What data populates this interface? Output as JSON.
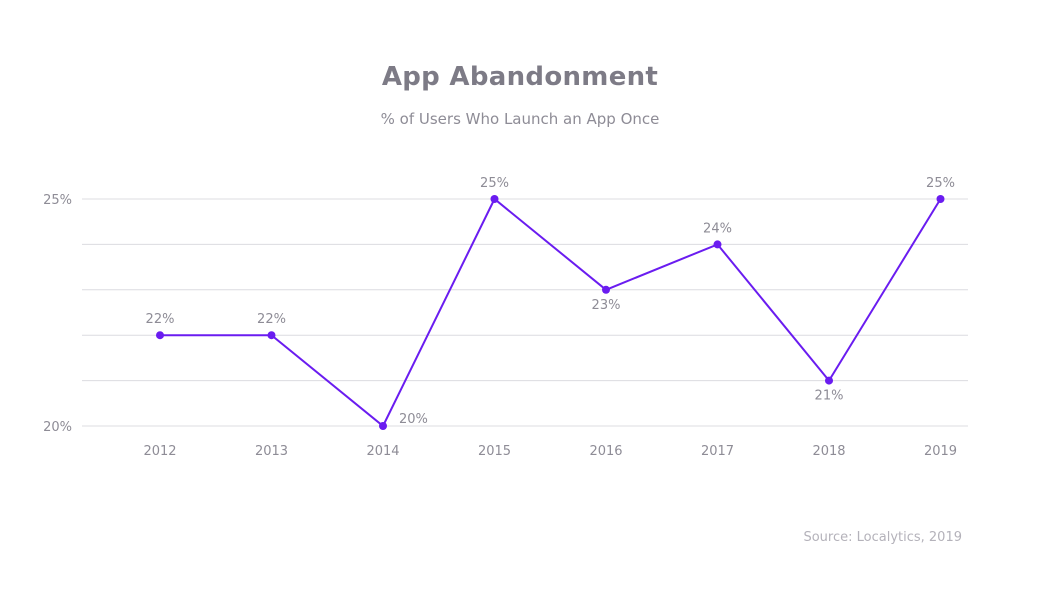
{
  "chart_data": {
    "type": "line",
    "title": "App Abandonment",
    "subtitle": "% of Users Who Launch an App Once",
    "source": "Source: Localytics, 2019",
    "x": [
      "2012",
      "2013",
      "2014",
      "2015",
      "2016",
      "2017",
      "2018",
      "2019"
    ],
    "series": [
      {
        "values": [
          22,
          22,
          20,
          25,
          23,
          24,
          21,
          25
        ],
        "labels": [
          "22%",
          "22%",
          "20%",
          "25%",
          "23%",
          "24%",
          "21%",
          "25%"
        ],
        "color": "#6a1cf0"
      }
    ],
    "yticks": [
      {
        "value": 25,
        "label": "25%"
      },
      {
        "value": 20,
        "label": "20%"
      }
    ],
    "ylim": [
      20,
      25
    ],
    "gridlines": [
      20,
      21,
      22,
      23,
      24,
      25
    ],
    "grid": true,
    "grid_color": "#dcdce0",
    "label_position": [
      "above",
      "above",
      "right",
      "above",
      "below",
      "above",
      "below",
      "above"
    ]
  }
}
